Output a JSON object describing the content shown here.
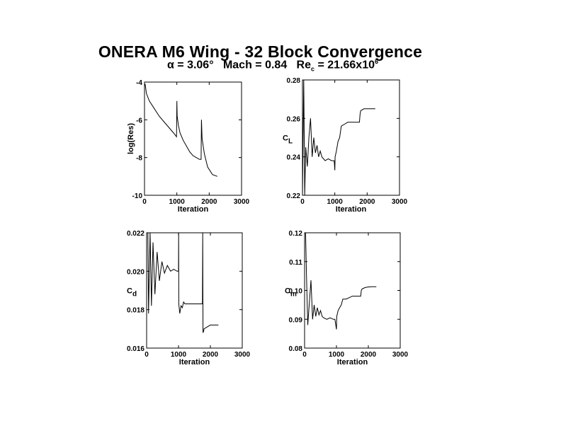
{
  "title": "ONERA M6 Wing - 32 Block Convergence",
  "subtitle": {
    "alpha_sym": "α",
    "alpha": " = 3.06°   Mach = 0.84   Re",
    "re_sub": "c",
    "re_val": " = 21.66x10",
    "re_exp": "6"
  },
  "chart_data": [
    {
      "type": "line",
      "xlabel": "Iteration",
      "ylabel": "log(Res)",
      "ylabel_sub": "",
      "xlim": [
        0,
        3000
      ],
      "ylim": [
        -10,
        -4
      ],
      "xticks": [
        "0",
        "1000",
        "2000",
        "3000"
      ],
      "yticks": [
        "-10",
        "-8",
        "-6",
        "-4"
      ],
      "series": [
        {
          "x": [
            0,
            20,
            60,
            150,
            300,
            450,
            600,
            750,
            900,
            990,
            1000,
            1010,
            1050,
            1100,
            1200,
            1300,
            1400,
            1500,
            1600,
            1700,
            1750,
            1760,
            1780,
            1850,
            1950,
            2100,
            2250
          ],
          "y": [
            -4.2,
            -4.1,
            -4.6,
            -5.0,
            -5.4,
            -5.8,
            -6.1,
            -6.4,
            -6.7,
            -6.9,
            -5.0,
            -5.8,
            -6.3,
            -6.7,
            -7.1,
            -7.4,
            -7.7,
            -7.9,
            -8.0,
            -8.1,
            -8.1,
            -6.0,
            -7.0,
            -7.8,
            -8.5,
            -8.9,
            -9.0
          ]
        }
      ]
    },
    {
      "type": "line",
      "xlabel": "Iteration",
      "ylabel": "C",
      "ylabel_sub": "L",
      "xlim": [
        0,
        3000
      ],
      "ylim": [
        0.22,
        0.28
      ],
      "xticks": [
        "0",
        "1000",
        "2000",
        "3000"
      ],
      "yticks": [
        "0.22",
        "0.24",
        "0.26",
        "0.28"
      ],
      "series": [
        {
          "x": [
            0,
            40,
            70,
            100,
            150,
            200,
            250,
            300,
            350,
            400,
            450,
            500,
            550,
            600,
            700,
            800,
            900,
            980,
            1000,
            1010,
            1050,
            1100,
            1150,
            1200,
            1300,
            1400,
            1500,
            1600,
            1700,
            1760,
            1780,
            1800,
            1900,
            2000,
            2100,
            2250
          ],
          "y": [
            0.22,
            0.28,
            0.22,
            0.245,
            0.235,
            0.25,
            0.26,
            0.24,
            0.25,
            0.242,
            0.246,
            0.24,
            0.243,
            0.24,
            0.238,
            0.239,
            0.238,
            0.238,
            0.233,
            0.24,
            0.243,
            0.248,
            0.25,
            0.256,
            0.257,
            0.258,
            0.258,
            0.258,
            0.258,
            0.258,
            0.262,
            0.264,
            0.265,
            0.265,
            0.265,
            0.265
          ]
        }
      ]
    },
    {
      "type": "line",
      "xlabel": "Iteration",
      "ylabel": "C",
      "ylabel_sub": "d",
      "xlim": [
        0,
        3000
      ],
      "ylim": [
        0.016,
        0.022
      ],
      "xticks": [
        "0",
        "1000",
        "2000",
        "3000"
      ],
      "yticks": [
        "0.016",
        "0.018",
        "0.020",
        "0.022"
      ],
      "series": [
        {
          "x": [
            0,
            40,
            60,
            110,
            150,
            200,
            260,
            330,
            400,
            480,
            560,
            650,
            750,
            850,
            950,
            1000,
            1005,
            1010,
            1040,
            1080,
            1120,
            1160,
            1200,
            1300,
            1400,
            1500,
            1600,
            1700,
            1750,
            1760,
            1770,
            1790,
            1800,
            1900,
            2000,
            2100,
            2250
          ],
          "y": [
            0.022,
            0.022,
            0.0178,
            0.022,
            0.0182,
            0.0215,
            0.0188,
            0.021,
            0.0195,
            0.0205,
            0.0199,
            0.0203,
            0.02,
            0.0201,
            0.02,
            0.02,
            0.022,
            0.0183,
            0.0178,
            0.0182,
            0.0181,
            0.0184,
            0.0183,
            0.0183,
            0.0183,
            0.0183,
            0.0183,
            0.0183,
            0.0183,
            0.022,
            0.0168,
            0.0169,
            0.017,
            0.0171,
            0.0172,
            0.0172,
            0.0172
          ]
        }
      ]
    },
    {
      "type": "line",
      "xlabel": "Iteration",
      "ylabel": "C",
      "ylabel_sub": "m",
      "xlim": [
        0,
        3000
      ],
      "ylim": [
        0.08,
        0.12
      ],
      "xticks": [
        "0",
        "1000",
        "2000",
        "3000"
      ],
      "yticks": [
        "0.08",
        "0.09",
        "0.10",
        "0.11",
        "0.12"
      ],
      "series": [
        {
          "x": [
            0,
            30,
            60,
            100,
            150,
            200,
            250,
            300,
            350,
            400,
            450,
            500,
            550,
            600,
            700,
            800,
            900,
            950,
            1000,
            1010,
            1050,
            1100,
            1150,
            1200,
            1300,
            1400,
            1500,
            1600,
            1700,
            1760,
            1780,
            1800,
            1900,
            2000,
            2100,
            2250
          ],
          "y": [
            0.12,
            0.12,
            0.105,
            0.088,
            0.096,
            0.1035,
            0.09,
            0.095,
            0.091,
            0.094,
            0.0915,
            0.093,
            0.091,
            0.0905,
            0.09,
            0.0905,
            0.09,
            0.09,
            0.0865,
            0.091,
            0.093,
            0.094,
            0.095,
            0.097,
            0.097,
            0.0975,
            0.098,
            0.098,
            0.098,
            0.098,
            0.1,
            0.1005,
            0.101,
            0.1012,
            0.1013,
            0.1013
          ]
        }
      ]
    }
  ]
}
